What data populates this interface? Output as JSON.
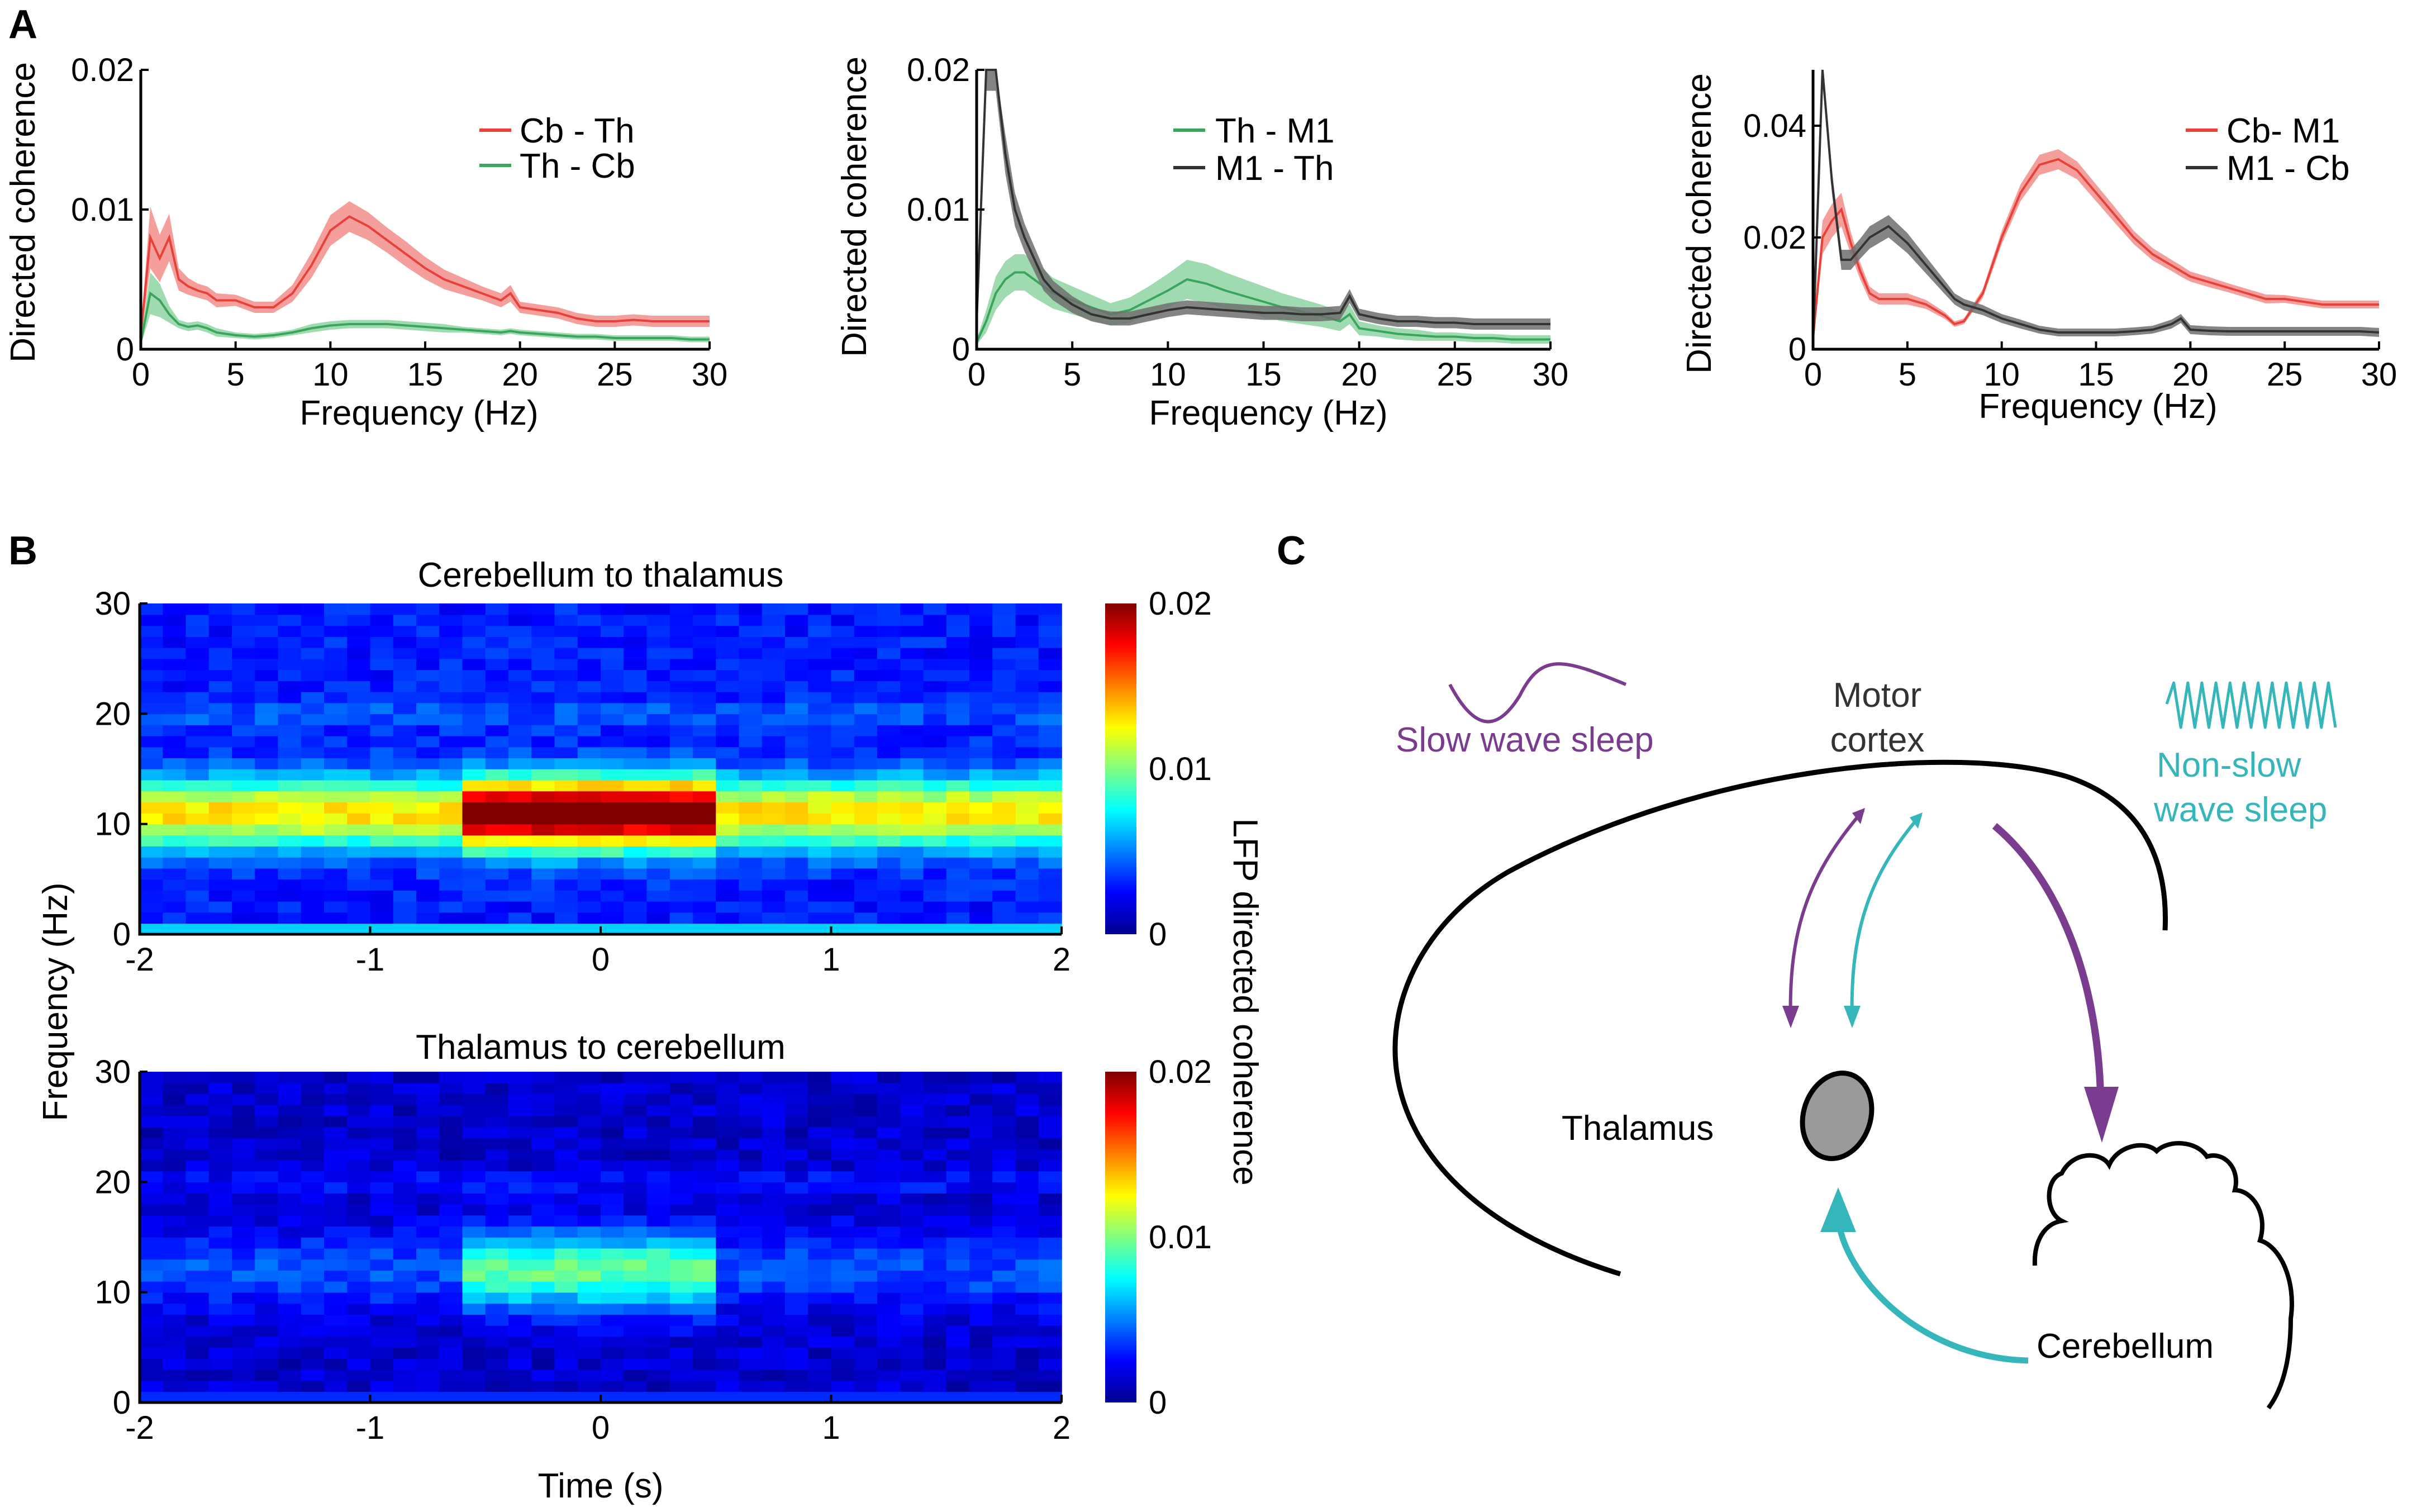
{
  "colors": {
    "red": "#e8413a",
    "red_band": "#f28e8a",
    "green": "#3aa55c",
    "green_band": "#8fd3a2",
    "black": "#333333",
    "black_band": "#6e6e6e",
    "purple": "#7a3c8f",
    "teal": "#35b6ba",
    "axis": "#000000"
  },
  "panel_labels": {
    "a": "A",
    "b": "B",
    "c": "C"
  },
  "chart_data": [
    {
      "id": "A1",
      "type": "line",
      "xlabel": "Frequency (Hz)",
      "ylabel": "Directed coherence",
      "xlim": [
        0,
        30
      ],
      "ylim": [
        0,
        0.02
      ],
      "xticks": [
        "0",
        "5",
        "10",
        "15",
        "20",
        "25",
        "30"
      ],
      "yticks": [
        "0",
        "0.01",
        "0.02"
      ],
      "x": [
        0,
        0.5,
        1,
        1.5,
        2,
        2.5,
        3,
        3.5,
        4,
        5,
        6,
        7,
        8,
        9,
        10,
        11,
        12,
        13,
        14,
        15,
        16,
        17,
        18,
        19,
        19.5,
        20,
        21,
        22,
        23,
        24,
        25,
        26,
        27,
        28,
        29,
        30
      ],
      "series": [
        {
          "name": "Cb - Th",
          "color": "red",
          "values": [
            0.001,
            0.008,
            0.0065,
            0.008,
            0.005,
            0.0045,
            0.0042,
            0.004,
            0.0035,
            0.0035,
            0.003,
            0.003,
            0.004,
            0.006,
            0.0085,
            0.0095,
            0.0088,
            0.0078,
            0.0068,
            0.0058,
            0.005,
            0.0045,
            0.004,
            0.0035,
            0.004,
            0.003,
            0.0028,
            0.0026,
            0.0022,
            0.002,
            0.002,
            0.0021,
            0.002,
            0.002,
            0.002,
            0.002
          ],
          "band": [
            0.0003,
            0.0022,
            0.0017,
            0.0017,
            0.0008,
            0.0006,
            0.0005,
            0.0005,
            0.0005,
            0.0004,
            0.0004,
            0.0004,
            0.0006,
            0.0009,
            0.0011,
            0.0011,
            0.001,
            0.0009,
            0.0009,
            0.0008,
            0.0007,
            0.0006,
            0.0005,
            0.0005,
            0.0006,
            0.0004,
            0.0004,
            0.0004,
            0.0004,
            0.0004,
            0.0004,
            0.0004,
            0.0004,
            0.0004,
            0.0004,
            0.0004
          ]
        },
        {
          "name": "Th - Cb",
          "color": "green",
          "values": [
            0.0005,
            0.004,
            0.0035,
            0.0025,
            0.0018,
            0.0016,
            0.0017,
            0.0015,
            0.0012,
            0.001,
            0.0009,
            0.001,
            0.0012,
            0.0015,
            0.0017,
            0.0018,
            0.0018,
            0.0018,
            0.0017,
            0.0016,
            0.0015,
            0.0014,
            0.0013,
            0.0012,
            0.0013,
            0.0012,
            0.0011,
            0.001,
            0.0009,
            0.0009,
            0.0008,
            0.0008,
            0.0008,
            0.0008,
            0.0007,
            0.0007
          ],
          "band": [
            0.0002,
            0.0015,
            0.0012,
            0.0006,
            0.0003,
            0.0003,
            0.0003,
            0.0003,
            0.0003,
            0.0002,
            0.0002,
            0.0002,
            0.0002,
            0.0003,
            0.0003,
            0.0003,
            0.0003,
            0.0003,
            0.0003,
            0.0003,
            0.0003,
            0.0002,
            0.0002,
            0.0002,
            0.0002,
            0.0002,
            0.0002,
            0.0002,
            0.0002,
            0.0002,
            0.0002,
            0.0002,
            0.0002,
            0.0002,
            0.0002,
            0.0002
          ]
        }
      ]
    },
    {
      "id": "A2",
      "type": "line",
      "xlabel": "Frequency (Hz)",
      "ylabel": "Directed coherence",
      "xlim": [
        0,
        30
      ],
      "ylim": [
        0,
        0.02
      ],
      "xticks": [
        "0",
        "5",
        "10",
        "15",
        "20",
        "25",
        "30"
      ],
      "yticks": [
        "0",
        "0.01",
        "0.02"
      ],
      "x": [
        0,
        0.5,
        1,
        1.5,
        2,
        2.5,
        3,
        3.5,
        4,
        5,
        6,
        7,
        8,
        9,
        10,
        11,
        12,
        13,
        14,
        15,
        16,
        17,
        18,
        19,
        19.5,
        20,
        21,
        22,
        23,
        24,
        25,
        26,
        27,
        28,
        29,
        30
      ],
      "series": [
        {
          "name": "Th - M1",
          "color": "green",
          "values": [
            0.0005,
            0.002,
            0.004,
            0.005,
            0.0055,
            0.0055,
            0.005,
            0.0045,
            0.004,
            0.0035,
            0.003,
            0.0025,
            0.0028,
            0.0035,
            0.0042,
            0.005,
            0.0047,
            0.0042,
            0.0038,
            0.0034,
            0.003,
            0.0027,
            0.0024,
            0.002,
            0.0025,
            0.0015,
            0.0013,
            0.0011,
            0.001,
            0.0009,
            0.0009,
            0.0008,
            0.0008,
            0.0007,
            0.0007,
            0.0007
          ],
          "band": [
            0.0002,
            0.0008,
            0.0012,
            0.0013,
            0.0013,
            0.0013,
            0.0013,
            0.0012,
            0.0011,
            0.001,
            0.0009,
            0.0008,
            0.0009,
            0.001,
            0.0012,
            0.0014,
            0.0014,
            0.0013,
            0.0012,
            0.0011,
            0.001,
            0.0009,
            0.0008,
            0.0007,
            0.0007,
            0.0005,
            0.0004,
            0.0004,
            0.0004,
            0.0003,
            0.0003,
            0.0003,
            0.0003,
            0.0003,
            0.0003,
            0.0003
          ]
        },
        {
          "name": "M1 - Th",
          "color": "black",
          "values": [
            0.002,
            0.02,
            0.02,
            0.014,
            0.01,
            0.008,
            0.0065,
            0.005,
            0.0042,
            0.0032,
            0.0025,
            0.0022,
            0.0022,
            0.0025,
            0.0028,
            0.003,
            0.0029,
            0.0028,
            0.0027,
            0.0026,
            0.0026,
            0.0025,
            0.0025,
            0.0026,
            0.0038,
            0.0025,
            0.0022,
            0.002,
            0.002,
            0.0019,
            0.0019,
            0.0018,
            0.0018,
            0.0018,
            0.0018,
            0.0018
          ],
          "band": [
            0.0005,
            0.0015,
            0.0015,
            0.0014,
            0.0012,
            0.001,
            0.0009,
            0.0008,
            0.0007,
            0.0006,
            0.0005,
            0.0005,
            0.0005,
            0.0005,
            0.0005,
            0.0005,
            0.0005,
            0.0005,
            0.0005,
            0.0005,
            0.0005,
            0.0005,
            0.0005,
            0.0005,
            0.0005,
            0.0004,
            0.0004,
            0.0004,
            0.0004,
            0.0004,
            0.0004,
            0.0004,
            0.0004,
            0.0004,
            0.0004,
            0.0004
          ]
        }
      ]
    },
    {
      "id": "A3",
      "type": "line",
      "xlabel": "Frequency (Hz)",
      "ylabel": "Directed coherence",
      "xlim": [
        0,
        30
      ],
      "ylim": [
        0,
        0.05
      ],
      "xticks": [
        "0",
        "5",
        "10",
        "15",
        "20",
        "25",
        "30"
      ],
      "yticks": [
        "0",
        "0.02",
        "0.04"
      ],
      "x": [
        0,
        0.5,
        1,
        1.5,
        2,
        2.5,
        3,
        3.5,
        4,
        5,
        6,
        7,
        7.5,
        8,
        9,
        10,
        11,
        12,
        13,
        14,
        15,
        16,
        17,
        18,
        19,
        19.5,
        20,
        21,
        22,
        23,
        24,
        25,
        26,
        27,
        28,
        29,
        30
      ],
      "series": [
        {
          "name": "Cb- M1",
          "color": "red",
          "values": [
            0.002,
            0.02,
            0.023,
            0.025,
            0.019,
            0.014,
            0.01,
            0.009,
            0.009,
            0.009,
            0.008,
            0.006,
            0.0045,
            0.005,
            0.01,
            0.02,
            0.028,
            0.033,
            0.034,
            0.032,
            0.028,
            0.024,
            0.02,
            0.017,
            0.015,
            0.014,
            0.013,
            0.012,
            0.011,
            0.01,
            0.009,
            0.009,
            0.0085,
            0.008,
            0.008,
            0.008,
            0.008
          ],
          "band": [
            0.0005,
            0.003,
            0.003,
            0.003,
            0.002,
            0.0015,
            0.0012,
            0.001,
            0.001,
            0.001,
            0.0008,
            0.0006,
            0.0005,
            0.0005,
            0.0008,
            0.0012,
            0.0015,
            0.0018,
            0.0018,
            0.0016,
            0.0015,
            0.0014,
            0.0012,
            0.0011,
            0.001,
            0.001,
            0.0009,
            0.0009,
            0.0008,
            0.0008,
            0.0008,
            0.0007,
            0.0007,
            0.0007,
            0.0007,
            0.0007,
            0.0007
          ]
        },
        {
          "name": "M1 - Cb",
          "color": "black",
          "values": [
            0.001,
            0.05,
            0.03,
            0.016,
            0.016,
            0.018,
            0.02,
            0.021,
            0.022,
            0.019,
            0.015,
            0.011,
            0.009,
            0.008,
            0.007,
            0.0055,
            0.0045,
            0.0035,
            0.003,
            0.003,
            0.003,
            0.003,
            0.0032,
            0.0035,
            0.0045,
            0.0055,
            0.0035,
            0.0033,
            0.0032,
            0.0032,
            0.0032,
            0.0032,
            0.0032,
            0.0032,
            0.0032,
            0.0032,
            0.003
          ],
          "band": [
            0.0003,
            0.002,
            0.002,
            0.0018,
            0.0018,
            0.0018,
            0.002,
            0.002,
            0.002,
            0.0018,
            0.0015,
            0.0012,
            0.001,
            0.001,
            0.0009,
            0.0008,
            0.0008,
            0.0007,
            0.0007,
            0.0007,
            0.0007,
            0.0007,
            0.0007,
            0.0007,
            0.0008,
            0.0008,
            0.0008,
            0.0008,
            0.0008,
            0.0008,
            0.0008,
            0.0008,
            0.0008,
            0.0008,
            0.0008,
            0.0008,
            0.0008
          ]
        }
      ]
    },
    {
      "id": "B1",
      "type": "heatmap",
      "title": "Cerebellum to thalamus",
      "xlim": [
        -2,
        2
      ],
      "ylim": [
        0,
        30
      ],
      "xticks": [
        "-2",
        "-1",
        "0",
        "1",
        "2"
      ],
      "yticks": [
        "0",
        "10",
        "20",
        "30"
      ],
      "clim": [
        0,
        0.02
      ],
      "cticks": [
        "0",
        "0.01",
        "0.02"
      ],
      "colorbar_label": "LFP directed coherence",
      "events": [
        -0.55,
        0.5
      ],
      "peak_freq": 11,
      "peak_width": 2.2,
      "peak_during": 0.019,
      "peak_outside": 0.01,
      "background": 0.003
    },
    {
      "id": "B2",
      "type": "heatmap",
      "title": "Thalamus to cerebellum",
      "xlabel": "Time (s)",
      "xlim": [
        -2,
        2
      ],
      "ylim": [
        0,
        30
      ],
      "xticks": [
        "-2",
        "-1",
        "0",
        "1",
        "2"
      ],
      "yticks": [
        "0",
        "10",
        "20",
        "30"
      ],
      "clim": [
        0,
        0.02
      ],
      "cticks": [
        "0",
        "0.01",
        "0.02"
      ],
      "events": [
        -0.55,
        0.5
      ],
      "peak_freq": 12,
      "peak_width": 2.4,
      "peak_during": 0.008,
      "peak_outside": 0.0025,
      "background": 0.0015
    }
  ],
  "shared": {
    "heatmap_ylabel": "Frequency (Hz)"
  },
  "diagram": {
    "motor_cortex": [
      "Motor",
      "cortex"
    ],
    "thalamus": "Thalamus",
    "cerebellum": "Cerebellum",
    "slow_wave": "Slow wave sleep",
    "non_slow_wave": [
      "Non-slow",
      "wave sleep"
    ]
  }
}
